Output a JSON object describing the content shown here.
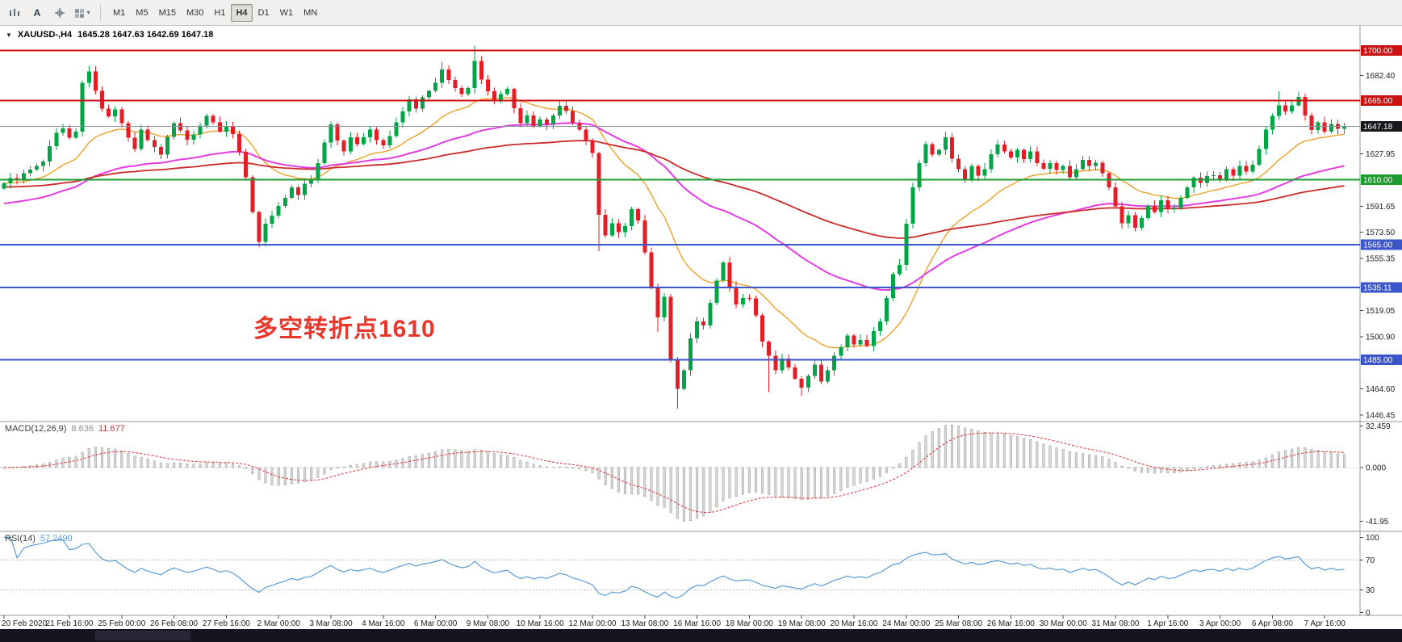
{
  "toolbar": {
    "icons": [
      {
        "name": "charts-bar-icon",
        "glyph": "bars",
        "dropdown": false
      },
      {
        "name": "font-icon",
        "glyph": "A",
        "dropdown": false
      },
      {
        "name": "crosshair-icon",
        "glyph": "cross",
        "dropdown": false
      },
      {
        "name": "colors-icon",
        "glyph": "palette",
        "dropdown": true
      }
    ],
    "timeframes": [
      "M1",
      "M5",
      "M15",
      "M30",
      "H1",
      "H4",
      "D1",
      "W1",
      "MN"
    ],
    "active_timeframe": "H4"
  },
  "chart_header": {
    "expander": "▼",
    "symbol_period": "XAUUSD-,H4",
    "ohlc": "1645.28 1647.63 1642.69 1647.18"
  },
  "annotation": {
    "text": "多空转折点1610",
    "color": "#e8382e"
  },
  "colors": {
    "up": "#00a546",
    "down": "#e41e26",
    "ma_fast": "#eda128",
    "ma_mid": "#e23ce2",
    "ma_slow": "#cc2a2a",
    "current_line": "#8a929c",
    "current_badge": "#16181c",
    "panel_border": "#9a9a9a",
    "axis_text": "#1c1c1c",
    "macd_hist": "#d6d6d6",
    "macd_hist_border": "#9e9e9e",
    "macd_signal": "#dd3333",
    "rsi_line": "#5b9bd5",
    "level_line": "#bdbdbd",
    "bottom_bar": "#15151f"
  },
  "chart_data": {
    "type": "candlestick",
    "symbol": "XAUUSD-",
    "timeframe": "H4",
    "bars": 206,
    "open_first": 1604.0,
    "closes": [
      1607.5,
      1611.2,
      1609.8,
      1614.5,
      1617.2,
      1619.6,
      1622.8,
      1633.5,
      1642.6,
      1645.8,
      1639.4,
      1643.6,
      1677.5,
      1685.2,
      1671.8,
      1659.5,
      1654.2,
      1658.8,
      1649.5,
      1639.2,
      1631.5,
      1644.8,
      1637.5,
      1632.8,
      1627.5,
      1639.8,
      1649.5,
      1644.2,
      1637.8,
      1641.5,
      1647.8,
      1654.5,
      1649.8,
      1643.5,
      1647.2,
      1641.8,
      1629.5,
      1611.8,
      1587.5,
      1566.8,
      1579.5,
      1585.2,
      1591.8,
      1597.5,
      1604.8,
      1599.5,
      1607.2,
      1609.8,
      1621.5,
      1635.8,
      1648.5,
      1637.2,
      1629.8,
      1639.5,
      1634.8,
      1639.5,
      1644.8,
      1637.5,
      1633.8,
      1640.5,
      1649.8,
      1657.5,
      1665.8,
      1659.5,
      1667.2,
      1671.8,
      1677.5,
      1686.8,
      1679.5,
      1673.8,
      1669.5,
      1673.8,
      1692.5,
      1679.8,
      1671.5,
      1664.8,
      1669.5,
      1673.2,
      1659.8,
      1649.5,
      1654.8,
      1647.5,
      1651.8,
      1648.5,
      1654.8,
      1661.5,
      1657.8,
      1649.5,
      1644.8,
      1637.5,
      1628.5,
      1585.8,
      1571.5,
      1579.8,
      1573.5,
      1577.8,
      1589.5,
      1581.8,
      1559.5,
      1534.8,
      1514.5,
      1528.8,
      1485.5,
      1464.8,
      1477.5,
      1499.8,
      1511.5,
      1508.8,
      1524.5,
      1539.8,
      1552.5,
      1535.8,
      1523.5,
      1527.8,
      1527.5,
      1515.8,
      1497.5,
      1487.8,
      1477.5,
      1485.8,
      1479.5,
      1471.8,
      1465.5,
      1473.8,
      1481.5,
      1469.8,
      1477.5,
      1487.8,
      1493.5,
      1501.8,
      1495.5,
      1498.8,
      1494.5,
      1504.8,
      1511.5,
      1527.8,
      1544.5,
      1550.8,
      1579.5,
      1604.8,
      1621.5,
      1634.8,
      1627.5,
      1630.8,
      1639.5,
      1624.8,
      1617.5,
      1609.8,
      1619.5,
      1612.8,
      1617.5,
      1627.8,
      1634.5,
      1629.8,
      1625.5,
      1630.8,
      1624.5,
      1629.8,
      1621.5,
      1617.8,
      1621.5,
      1616.8,
      1619.5,
      1611.8,
      1617.5,
      1623.8,
      1619.5,
      1621.8,
      1614.5,
      1604.8,
      1591.5,
      1579.8,
      1585.5,
      1576.8,
      1583.5,
      1591.8,
      1587.5,
      1595.8,
      1589.5,
      1590.8,
      1597.5,
      1604.8,
      1611.5,
      1607.8,
      1612.5,
      1613.2,
      1609.8,
      1617.5,
      1612.8,
      1619.5,
      1615.8,
      1620.5,
      1631.5,
      1644.8,
      1654.5,
      1661.8,
      1657.5,
      1661.8,
      1667.5,
      1654.8,
      1644.5,
      1649.8,
      1643.5,
      1648.8,
      1645.5,
      1647.18
    ],
    "wick_overrides": {
      "13": [
        1689.2,
        null
      ],
      "39": [
        null,
        1563.3
      ],
      "67": [
        1692.1,
        null
      ],
      "72": [
        1703.3,
        null
      ],
      "91": [
        null,
        1560.4
      ],
      "100": [
        null,
        1504.2
      ],
      "103": [
        null,
        1451.1
      ],
      "117": [
        null,
        1462.4
      ],
      "122": [
        null,
        1459.9
      ],
      "195": [
        1671.6,
        null
      ],
      "198": [
        1671.3,
        null
      ]
    },
    "price_axis": {
      "min": 1442,
      "max": 1717,
      "ticks": [
        1682.4,
        1627.95,
        1591.65,
        1573.5,
        1555.35,
        1519.05,
        1500.9,
        1464.6,
        1446.45
      ]
    },
    "hlines": [
      {
        "price": 1700.0,
        "label": "1700.00",
        "color": "#cc1111",
        "width": 2
      },
      {
        "price": 1665.0,
        "label": "1665.00",
        "color": "#cc1111",
        "width": 2
      },
      {
        "price": 1610.0,
        "label": "1610.00",
        "color": "#1e9c30",
        "width": 2
      },
      {
        "price": 1565.0,
        "label": "1565.00",
        "color": "#3a56c8",
        "width": 2
      },
      {
        "price": 1535.11,
        "label": "1535.11",
        "color": "#3a56c8",
        "width": 2
      },
      {
        "price": 1485.0,
        "label": "1485.00",
        "color": "#3a56c8",
        "width": 2
      }
    ],
    "current_price": {
      "value": 1647.18,
      "label": "1647.18"
    },
    "mas": [
      {
        "name": "ma-fast",
        "period": 18,
        "seed": null
      },
      {
        "name": "ma-medium",
        "period": 55,
        "seed": 1593
      },
      {
        "name": "ma-slow",
        "period": 120,
        "seed": 1605
      }
    ],
    "macd": {
      "label": "MACD(12,26,9)",
      "value_main": "8.636",
      "value_signal": "11.677",
      "fast": 12,
      "slow": 26,
      "signal": 9,
      "axis": [
        {
          "v": 32.459,
          "label": "32.459"
        },
        {
          "v": 0,
          "label": "0.000"
        },
        {
          "v": -41.95,
          "label": "-41.95"
        }
      ],
      "range": [
        -50,
        36
      ]
    },
    "rsi": {
      "label": "RSI(14)",
      "value": "57.2490",
      "period": 14,
      "levels": [
        70,
        30
      ],
      "axis": [
        {
          "v": 100,
          "label": "100"
        },
        {
          "v": 70,
          "label": "70"
        },
        {
          "v": 30,
          "label": "30"
        },
        {
          "v": 0,
          "label": "0"
        }
      ],
      "range": [
        -4,
        108
      ]
    },
    "time_labels": [
      {
        "bar": 0,
        "text": "20 Feb 2020"
      },
      {
        "bar": 10,
        "text": "21 Feb 16:00"
      },
      {
        "bar": 18,
        "text": "25 Feb 00:00"
      },
      {
        "bar": 26,
        "text": "26 Feb 08:00"
      },
      {
        "bar": 34,
        "text": "27 Feb 16:00"
      },
      {
        "bar": 42,
        "text": "2 Mar 00:00"
      },
      {
        "bar": 50,
        "text": "3 Mar 08:00"
      },
      {
        "bar": 58,
        "text": "4 Mar 16:00"
      },
      {
        "bar": 66,
        "text": "6 Mar 00:00"
      },
      {
        "bar": 74,
        "text": "9 Mar 08:00"
      },
      {
        "bar": 82,
        "text": "10 Mar 16:00"
      },
      {
        "bar": 90,
        "text": "12 Mar 00:00"
      },
      {
        "bar": 98,
        "text": "13 Mar 08:00"
      },
      {
        "bar": 106,
        "text": "16 Mar 16:00"
      },
      {
        "bar": 114,
        "text": "18 Mar 00:00"
      },
      {
        "bar": 122,
        "text": "19 Mar 08:00"
      },
      {
        "bar": 130,
        "text": "20 Mar 16:00"
      },
      {
        "bar": 138,
        "text": "24 Mar 00:00"
      },
      {
        "bar": 146,
        "text": "25 Mar 08:00"
      },
      {
        "bar": 154,
        "text": "26 Mar 16:00"
      },
      {
        "bar": 162,
        "text": "30 Mar 00:00"
      },
      {
        "bar": 170,
        "text": "31 Mar 08:00"
      },
      {
        "bar": 178,
        "text": "1 Apr 16:00"
      },
      {
        "bar": 186,
        "text": "3 Apr 00:00"
      },
      {
        "bar": 194,
        "text": "6 Apr 08:00"
      },
      {
        "bar": 202,
        "text": "7 Apr 16:00"
      }
    ]
  }
}
